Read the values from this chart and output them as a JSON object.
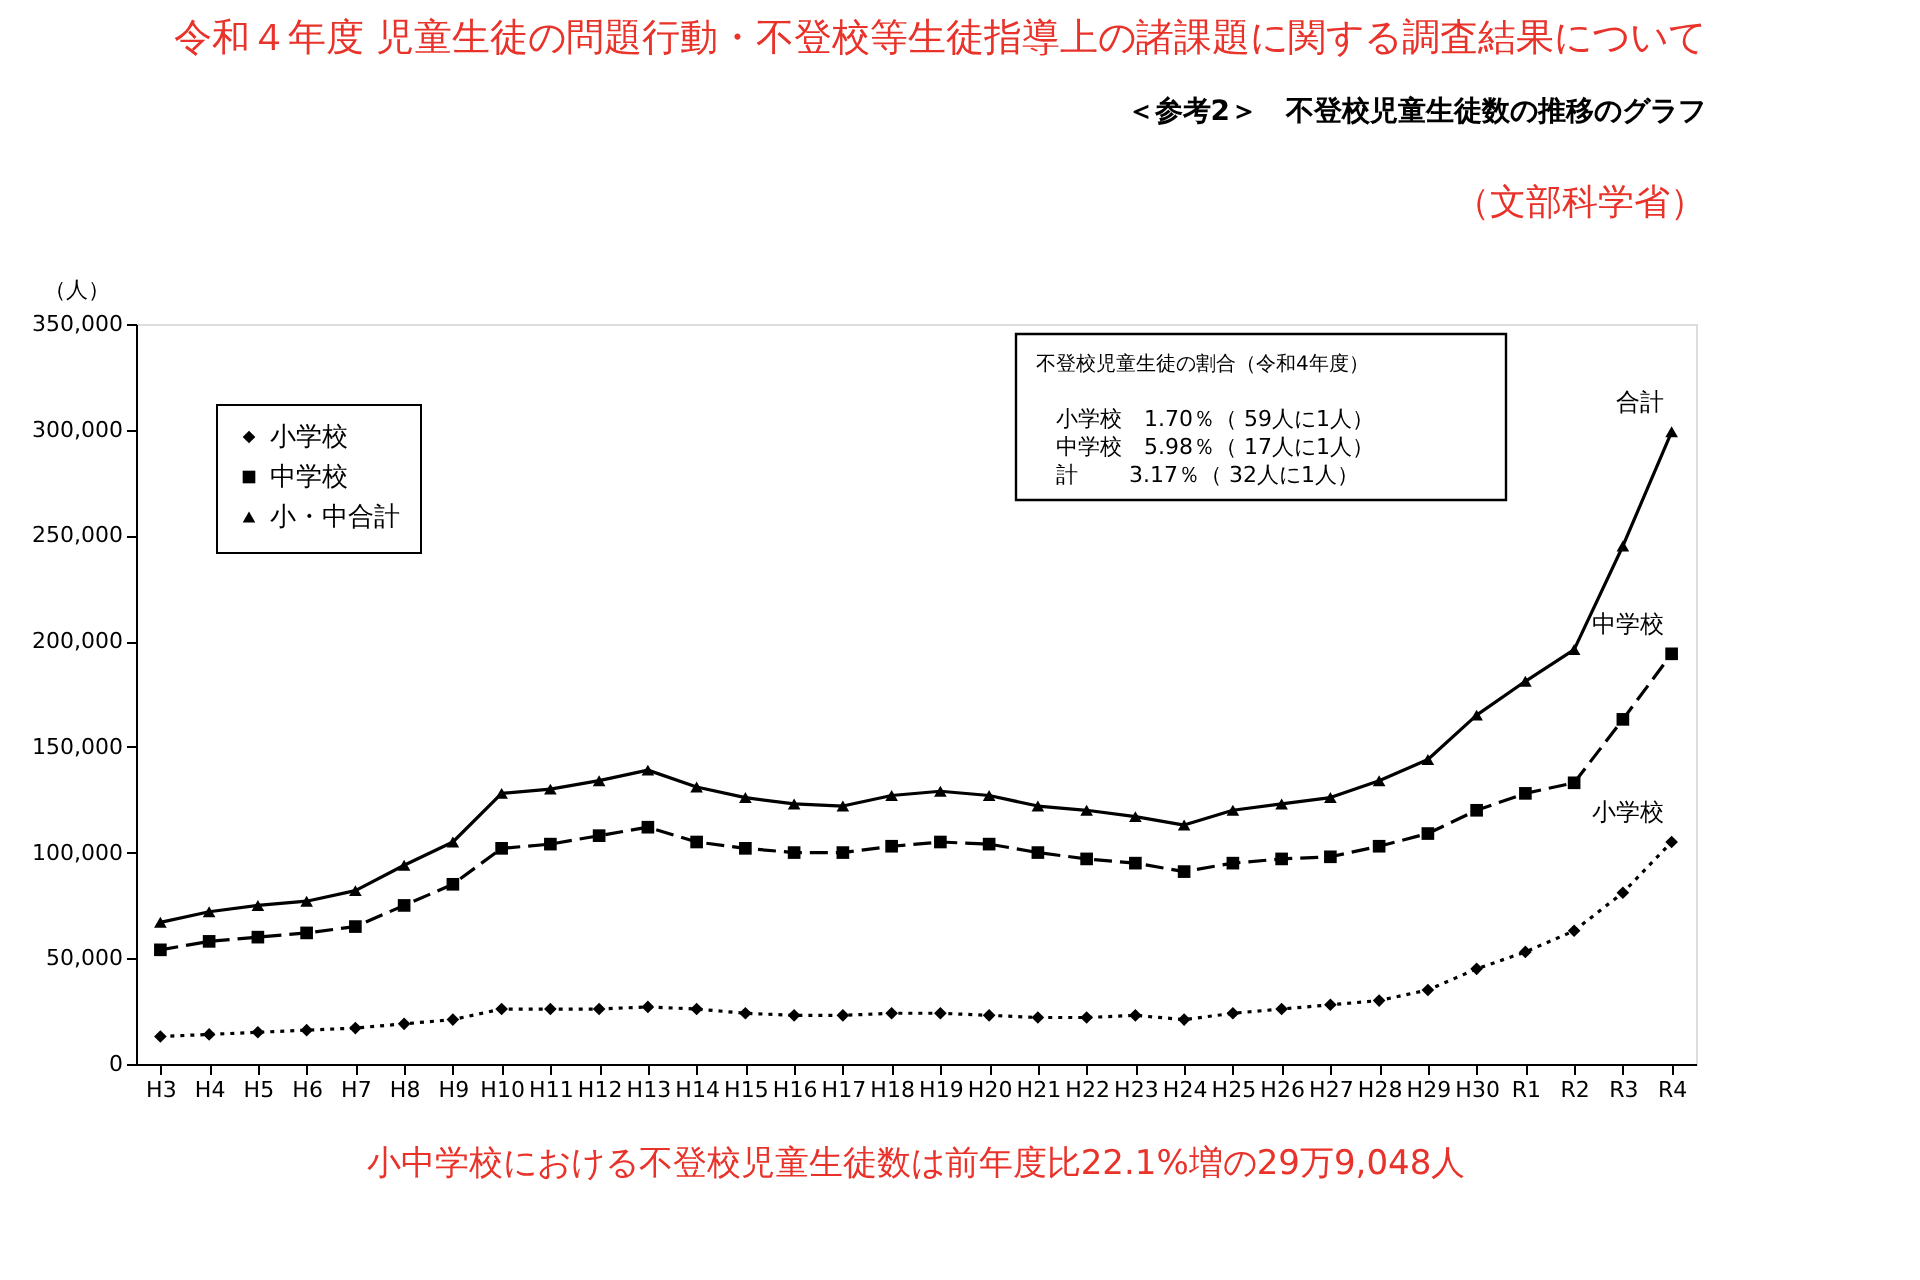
{
  "chart_data": {
    "type": "line",
    "title": "令和４年度 児童生徒の問題行動・不登校等生徒指導上の諸課題に関する調査結果について",
    "subtitle": "＜参考2＞　不登校児童生徒数の推移のグラフ",
    "ylabel": "（人）",
    "categories": [
      "H3",
      "H4",
      "H5",
      "H6",
      "H7",
      "H8",
      "H9",
      "H10",
      "H11",
      "H12",
      "H13",
      "H14",
      "H15",
      "H16",
      "H17",
      "H18",
      "H19",
      "H20",
      "H21",
      "H22",
      "H23",
      "H24",
      "H25",
      "H26",
      "H27",
      "H28",
      "H29",
      "H30",
      "R1",
      "R2",
      "R3",
      "R4"
    ],
    "series": [
      {
        "name": "小学校",
        "color": "#000000",
        "marker": "diamond",
        "line_style": "dotted",
        "values": [
          13000,
          14000,
          15000,
          16000,
          17000,
          19000,
          21000,
          26000,
          26000,
          26000,
          27000,
          26000,
          24000,
          23000,
          23000,
          24000,
          24000,
          23000,
          22000,
          22000,
          23000,
          21000,
          24000,
          26000,
          28000,
          30000,
          35000,
          45000,
          53000,
          63000,
          81000,
          105000
        ]
      },
      {
        "name": "中学校",
        "color": "#000000",
        "marker": "square",
        "line_style": "dashed",
        "values": [
          54000,
          58000,
          60000,
          62000,
          65000,
          75000,
          85000,
          102000,
          104000,
          108000,
          112000,
          105000,
          102000,
          100000,
          100000,
          103000,
          105000,
          104000,
          100000,
          97000,
          95000,
          91000,
          95000,
          97000,
          98000,
          103000,
          109000,
          120000,
          128000,
          133000,
          163000,
          194000
        ]
      },
      {
        "name": "小・中合計",
        "color": "#000000",
        "marker": "triangle",
        "line_style": "solid",
        "values": [
          67000,
          72000,
          75000,
          77000,
          82000,
          94000,
          105000,
          128000,
          130000,
          134000,
          139000,
          131000,
          126000,
          123000,
          122000,
          127000,
          129000,
          127000,
          122000,
          120000,
          117000,
          113000,
          120000,
          123000,
          126000,
          134000,
          144000,
          165000,
          181000,
          196000,
          245000,
          299000
        ]
      }
    ],
    "ylim": [
      0,
      350000
    ],
    "yticks": [
      0,
      {
        "value": 50000,
        "label": "50,000"
      },
      {
        "value": 100000,
        "label": "100,000"
      },
      {
        "value": 150000,
        "label": "150,000"
      },
      {
        "value": 200000,
        "label": "200,000"
      },
      {
        "value": 250000,
        "label": "250,000"
      },
      {
        "value": 300000,
        "label": "300,000"
      },
      {
        "value": 350000,
        "label": "350,000"
      }
    ],
    "grid": false,
    "legend": "top left",
    "annotations": [
      "（文部科学省）",
      "不登校児童生徒の割合（令和4年度）",
      "小学校　1.70％（ 59人に1人）",
      "中学校　5.98％（ 17人に1人）",
      "計　　 3.17％（ 32人に1人）",
      "小中学校における不登校児童生徒数は前年度比22.1%増の29万9,048人",
      {
        "text": "合計",
        "x": "R4",
        "y": 299000
      },
      {
        "text": "中学校",
        "x": "R4",
        "y": 194000
      },
      {
        "text": "小学校",
        "x": "R4",
        "y": 105000
      }
    ]
  }
}
